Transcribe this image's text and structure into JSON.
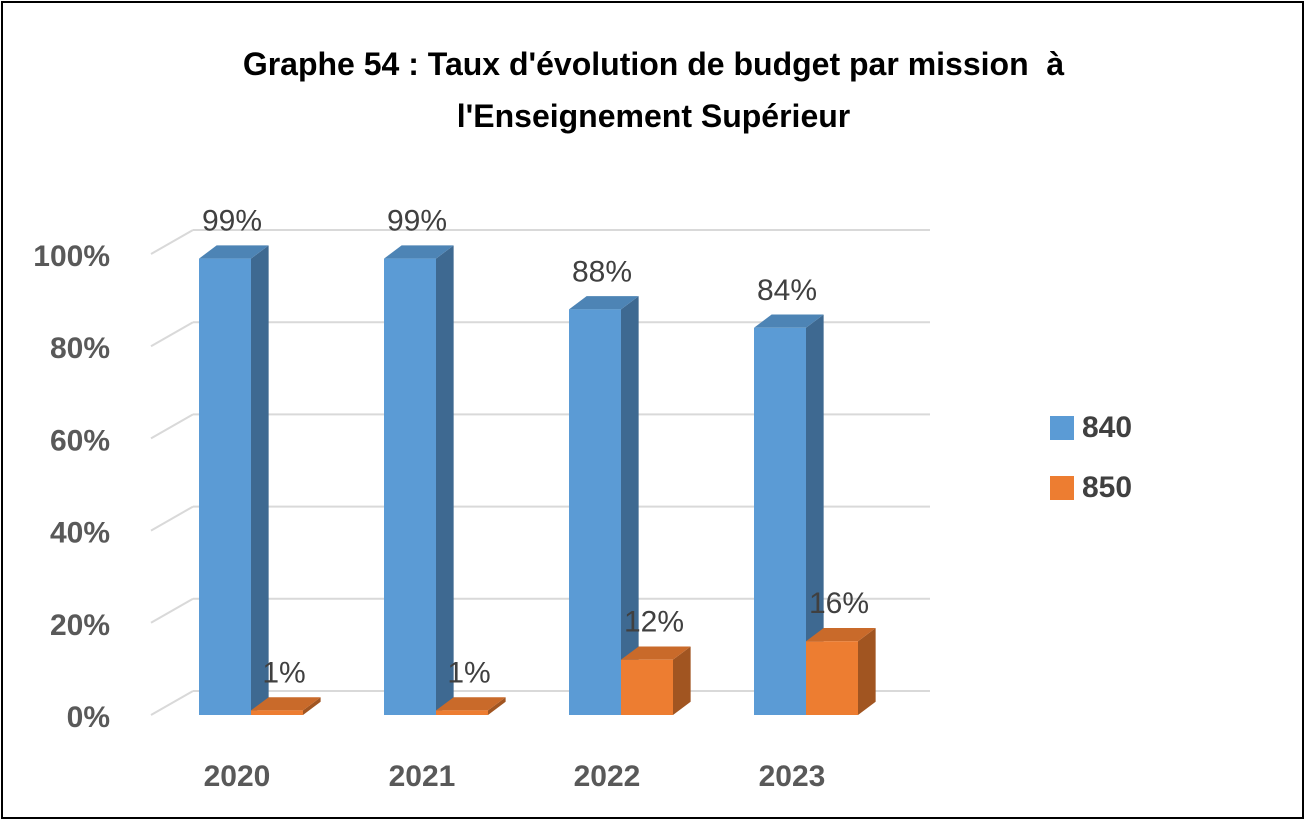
{
  "chart_data": {
    "type": "bar",
    "title_line1": "Graphe 54 : Taux d'évolution de budget par mission  à",
    "title_line2": "l'Enseignement Supérieur",
    "categories": [
      "2020",
      "2021",
      "2022",
      "2023"
    ],
    "series": [
      {
        "name": "840",
        "values": [
          99,
          99,
          88,
          84
        ],
        "labels": [
          "99%",
          "99%",
          "88%",
          "84%"
        ],
        "color": "#5B9BD5"
      },
      {
        "name": "850",
        "values": [
          1,
          1,
          12,
          16
        ],
        "labels": [
          "1%",
          "1%",
          "12%",
          "16%"
        ],
        "color": "#ED7D31"
      }
    ],
    "y_ticks": [
      "0%",
      "20%",
      "40%",
      "60%",
      "80%",
      "100%"
    ],
    "ylim": [
      0,
      100
    ],
    "grid": true,
    "legend_position": "right",
    "style": "3d-clustered-column"
  }
}
